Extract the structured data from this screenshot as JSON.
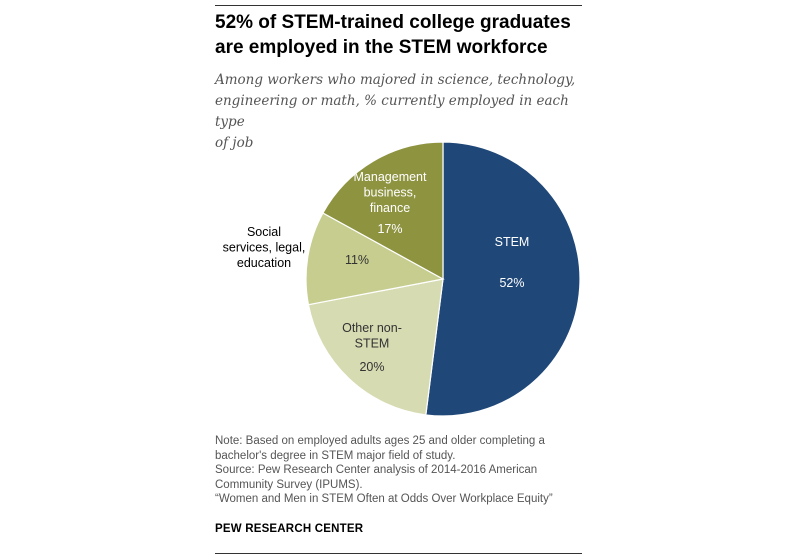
{
  "title_lines": [
    "52% of STEM-trained college graduates",
    "are employed in the STEM workforce"
  ],
  "subtitle_lines": [
    "Among workers who majored in science, technology,",
    "engineering or math, % currently employed in each type",
    "of job"
  ],
  "chart_data": {
    "type": "pie",
    "title": "52% of STEM-trained college graduates are employed in the STEM workforce",
    "slices": [
      {
        "label_lines": [
          "STEM"
        ],
        "value": 52,
        "value_label": "52%",
        "color": "#1f4778",
        "text_color": "#ffffff"
      },
      {
        "label_lines": [
          "Other non-",
          "STEM"
        ],
        "value": 20,
        "value_label": "20%",
        "color": "#d7dbb2",
        "text_color": "#333333"
      },
      {
        "label_lines": [
          "Social",
          "services, legal,",
          "education"
        ],
        "value": 11,
        "value_label": "11%",
        "color": "#c6cd8f",
        "text_color": "#333333"
      },
      {
        "label_lines": [
          "Management",
          "business,",
          "finance"
        ],
        "value": 17,
        "value_label": "17%",
        "color": "#8e9340",
        "text_color": "#ffffff"
      }
    ]
  },
  "notes": [
    "Note: Based on employed adults ages 25 and older completing a",
    "bachelor's degree in STEM major field of study.",
    "Source: Pew Research Center analysis of 2014-2016 American",
    "Community Survey (IPUMS).",
    "“Women and Men in STEM Often at Odds Over Workplace Equity”"
  ],
  "footer": {
    "brand": "PEW RESEARCH CENTER"
  }
}
